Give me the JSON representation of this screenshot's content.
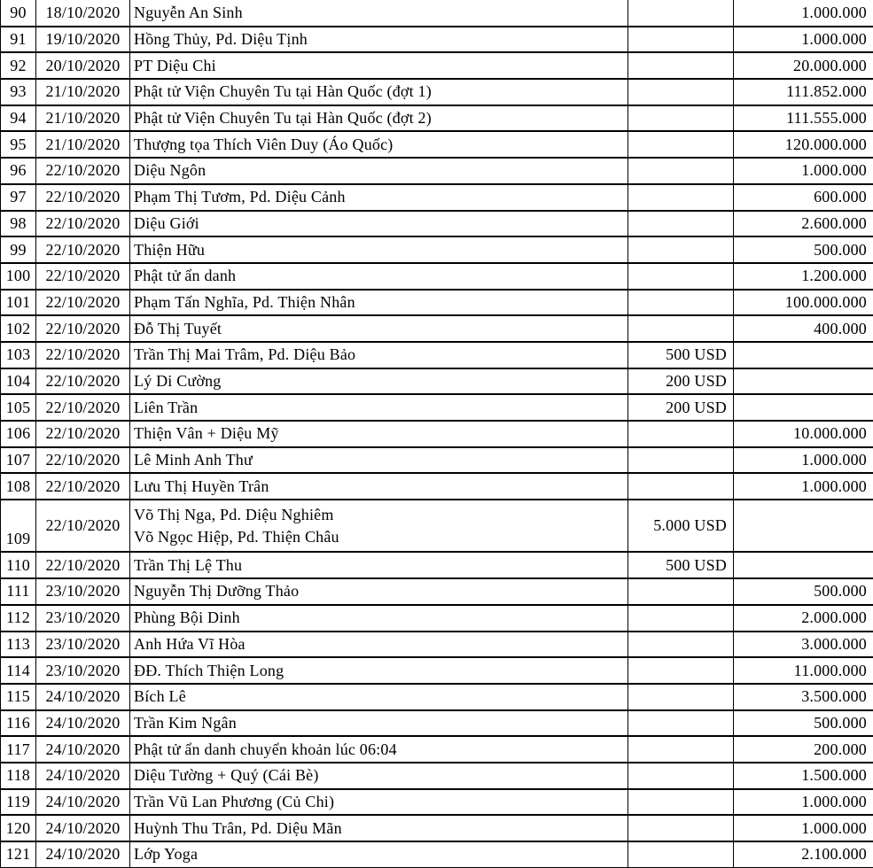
{
  "colors": {
    "text": "#000000",
    "border": "#000000",
    "background": "#ffffff"
  },
  "table": {
    "rows": [
      {
        "no": "90",
        "date": "18/10/2020",
        "name_lines": [
          "Nguyễn An Sinh"
        ],
        "usd": "",
        "vnd": "1.000.000"
      },
      {
        "no": "91",
        "date": "19/10/2020",
        "name_lines": [
          "Hồng Thủy, Pd. Diệu Tịnh"
        ],
        "usd": "",
        "vnd": "1.000.000"
      },
      {
        "no": "92",
        "date": "20/10/2020",
        "name_lines": [
          "PT Diệu Chi"
        ],
        "usd": "",
        "vnd": "20.000.000"
      },
      {
        "no": "93",
        "date": "21/10/2020",
        "name_lines": [
          "Phật tử Viện Chuyên Tu tại Hàn Quốc (đợt 1)"
        ],
        "usd": "",
        "vnd": "111.852.000"
      },
      {
        "no": "94",
        "date": "21/10/2020",
        "name_lines": [
          "Phật tử Viện Chuyên Tu tại Hàn Quốc (đợt 2)"
        ],
        "usd": "",
        "vnd": "111.555.000"
      },
      {
        "no": "95",
        "date": "21/10/2020",
        "name_lines": [
          "Thượng tọa Thích Viên Duy (Áo Quốc)"
        ],
        "usd": "",
        "vnd": "120.000.000"
      },
      {
        "no": "96",
        "date": "22/10/2020",
        "name_lines": [
          "Diệu Ngôn"
        ],
        "usd": "",
        "vnd": "1.000.000"
      },
      {
        "no": "97",
        "date": "22/10/2020",
        "name_lines": [
          "Phạm Thị Tươm, Pd. Diệu Cảnh"
        ],
        "usd": "",
        "vnd": "600.000"
      },
      {
        "no": "98",
        "date": "22/10/2020",
        "name_lines": [
          "Diệu Giới"
        ],
        "usd": "",
        "vnd": "2.600.000"
      },
      {
        "no": "99",
        "date": "22/10/2020",
        "name_lines": [
          "Thiện Hữu"
        ],
        "usd": "",
        "vnd": "500.000"
      },
      {
        "no": "100",
        "date": "22/10/2020",
        "name_lines": [
          "Phật tử ẩn danh"
        ],
        "usd": "",
        "vnd": "1.200.000"
      },
      {
        "no": "101",
        "date": "22/10/2020",
        "name_lines": [
          "Phạm Tấn Nghĩa, Pd. Thiện Nhân"
        ],
        "usd": "",
        "vnd": "100.000.000"
      },
      {
        "no": "102",
        "date": "22/10/2020",
        "name_lines": [
          "Đỗ Thị Tuyết"
        ],
        "usd": "",
        "vnd": "400.000"
      },
      {
        "no": "103",
        "date": "22/10/2020",
        "name_lines": [
          "Trần Thị Mai Trâm, Pd. Diệu Bảo"
        ],
        "usd": "500 USD",
        "vnd": ""
      },
      {
        "no": "104",
        "date": "22/10/2020",
        "name_lines": [
          "Lý Di Cường"
        ],
        "usd": "200 USD",
        "vnd": ""
      },
      {
        "no": "105",
        "date": "22/10/2020",
        "name_lines": [
          "Liên Trần"
        ],
        "usd": "200 USD",
        "vnd": ""
      },
      {
        "no": "106",
        "date": "22/10/2020",
        "name_lines": [
          "Thiện Vân + Diệu Mỹ"
        ],
        "usd": "",
        "vnd": "10.000.000"
      },
      {
        "no": "107",
        "date": "22/10/2020",
        "name_lines": [
          "Lê Minh Anh Thư"
        ],
        "usd": "",
        "vnd": "1.000.000"
      },
      {
        "no": "108",
        "date": "22/10/2020",
        "name_lines": [
          "Lưu Thị Huyền Trân"
        ],
        "usd": "",
        "vnd": "1.000.000"
      },
      {
        "no": "109",
        "date": "22/10/2020",
        "name_lines": [
          "Võ Thị Nga, Pd. Diệu Nghiêm",
          "Võ Ngọc Hiệp, Pd. Thiện Châu"
        ],
        "usd": "5.000 USD",
        "vnd": ""
      },
      {
        "no": "110",
        "date": "22/10/2020",
        "name_lines": [
          "Trần Thị Lệ Thu"
        ],
        "usd": "500 USD",
        "vnd": ""
      },
      {
        "no": "111",
        "date": "23/10/2020",
        "name_lines": [
          "Nguyễn Thị Dưỡng Thảo"
        ],
        "usd": "",
        "vnd": "500.000"
      },
      {
        "no": "112",
        "date": "23/10/2020",
        "name_lines": [
          "Phùng Bội Dinh"
        ],
        "usd": "",
        "vnd": "2.000.000"
      },
      {
        "no": "113",
        "date": "23/10/2020",
        "name_lines": [
          "Anh Hứa Vĩ Hòa"
        ],
        "usd": "",
        "vnd": "3.000.000"
      },
      {
        "no": "114",
        "date": "23/10/2020",
        "name_lines": [
          "ĐĐ. Thích Thiện Long"
        ],
        "usd": "",
        "vnd": "11.000.000"
      },
      {
        "no": "115",
        "date": "24/10/2020",
        "name_lines": [
          "Bích Lê"
        ],
        "usd": "",
        "vnd": "3.500.000"
      },
      {
        "no": "116",
        "date": "24/10/2020",
        "name_lines": [
          "Trần Kim Ngân"
        ],
        "usd": "",
        "vnd": "500.000"
      },
      {
        "no": "117",
        "date": "24/10/2020",
        "name_lines": [
          "Phật tử ẩn danh chuyển khoản lúc 06:04"
        ],
        "usd": "",
        "vnd": "200.000"
      },
      {
        "no": "118",
        "date": "24/10/2020",
        "name_lines": [
          "Diệu Tường + Quý (Cái Bè)"
        ],
        "usd": "",
        "vnd": "1.500.000"
      },
      {
        "no": "119",
        "date": "24/10/2020",
        "name_lines": [
          "Trần Vũ Lan Phương (Củ Chi)"
        ],
        "usd": "",
        "vnd": "1.000.000"
      },
      {
        "no": "120",
        "date": "24/10/2020",
        "name_lines": [
          "Huỳnh Thu Trân, Pd. Diệu Mãn"
        ],
        "usd": "",
        "vnd": "1.000.000"
      },
      {
        "no": "121",
        "date": "24/10/2020",
        "name_lines": [
          "Lớp Yoga"
        ],
        "usd": "",
        "vnd": "2.100.000"
      }
    ]
  }
}
